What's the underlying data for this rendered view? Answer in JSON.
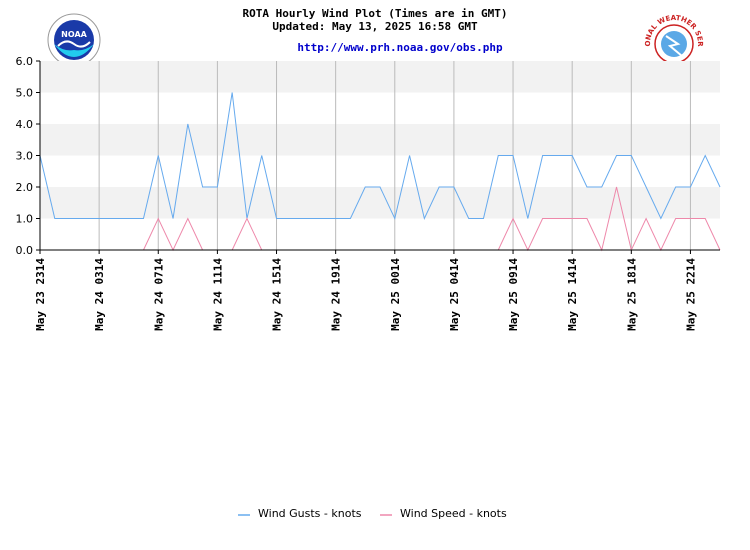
{
  "header": {
    "title": "ROTA Hourly Wind Plot (Times are in GMT)",
    "updated": "Updated: May 13, 2025 16:58 GMT",
    "url": "http://www.prh.noaa.gov/obs.php",
    "left_logo_text": "NOAA",
    "right_logo_text": "NATIONAL WEATHER SERVICE"
  },
  "chart_data": {
    "type": "line",
    "ylim": [
      0,
      6
    ],
    "yticks": [
      "0.0",
      "1.0",
      "2.0",
      "3.0",
      "4.0",
      "5.0",
      "6.0"
    ],
    "grid": true,
    "legend_position": "bottom-center",
    "x_tick_labels": [
      "May 23 2314",
      "May 24 0314",
      "May 24 0714",
      "May 24 1114",
      "May 24 1514",
      "May 24 1914",
      "May 25 0014",
      "May 25 0414",
      "May 25 0914",
      "May 25 1414",
      "May 25 1814",
      "May 25 2214"
    ],
    "x_tick_index": [
      0,
      4,
      8,
      12,
      16,
      20,
      24,
      28,
      32,
      36,
      40,
      44
    ],
    "series": [
      {
        "name": "Wind Gusts - knots",
        "color": "#66aaee",
        "values": [
          3,
          1,
          1,
          1,
          1,
          1,
          1,
          1,
          3,
          1,
          4,
          2,
          2,
          5,
          1,
          3,
          1,
          1,
          1,
          1,
          1,
          1,
          2,
          2,
          1,
          3,
          1,
          2,
          2,
          1,
          1,
          3,
          3,
          1,
          3,
          3,
          3,
          2,
          2,
          3,
          3,
          2,
          1,
          2,
          2,
          3,
          2
        ]
      },
      {
        "name": "Wind Speed - knots",
        "color": "#ee88aa",
        "values": [
          null,
          null,
          null,
          null,
          null,
          null,
          null,
          0,
          1,
          0,
          1,
          0,
          null,
          0,
          1,
          0,
          null,
          null,
          null,
          null,
          null,
          null,
          null,
          null,
          null,
          null,
          null,
          null,
          null,
          null,
          null,
          0,
          1,
          0,
          1,
          1,
          1,
          1,
          0,
          2,
          0,
          1,
          0,
          1,
          1,
          1,
          0
        ]
      }
    ]
  }
}
